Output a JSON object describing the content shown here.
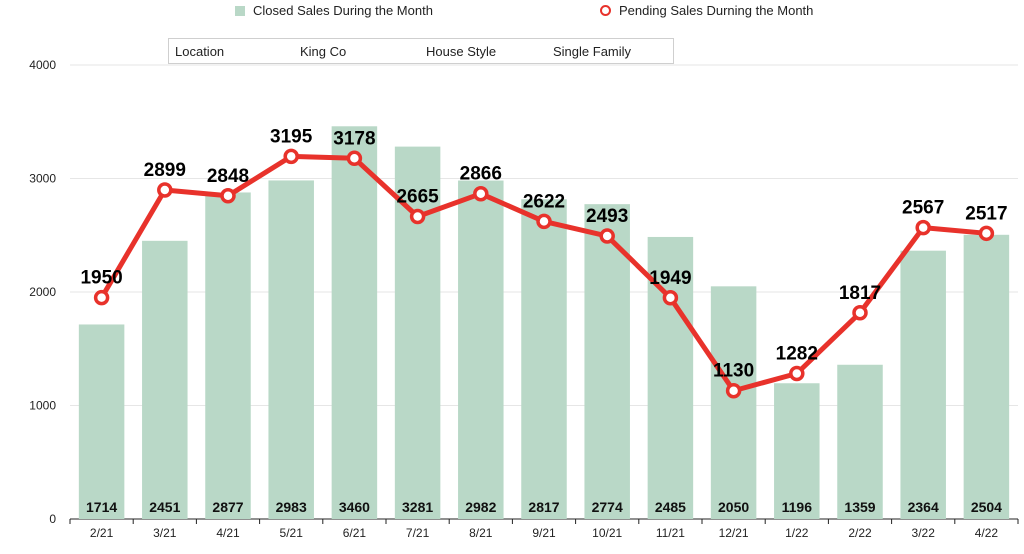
{
  "legend": {
    "closed_label": "Closed Sales During the Month",
    "pending_label": "Pending Sales Durning the Month"
  },
  "info_box": {
    "location_key": "Location",
    "location_value": "King Co",
    "style_key": "House Style",
    "style_value": "Single Family"
  },
  "colors": {
    "bar": "#b9d8c7",
    "line": "#e8322b",
    "grid": "#e6e6e6"
  },
  "chart_data": {
    "type": "bar",
    "categories": [
      "2/21",
      "3/21",
      "4/21",
      "5/21",
      "6/21",
      "7/21",
      "8/21",
      "9/21",
      "10/21",
      "11/21",
      "12/21",
      "1/22",
      "2/22",
      "3/22",
      "4/22"
    ],
    "series": [
      {
        "name": "Closed Sales During the Month",
        "type": "bar",
        "values": [
          1714,
          2451,
          2877,
          2983,
          3460,
          3281,
          2982,
          2817,
          2774,
          2485,
          2050,
          1196,
          1359,
          2364,
          2504
        ]
      },
      {
        "name": "Pending Sales Durning the Month",
        "type": "line",
        "values": [
          1950,
          2899,
          2848,
          3195,
          3178,
          2665,
          2866,
          2622,
          2493,
          1949,
          1130,
          1282,
          1817,
          2567,
          2517
        ]
      }
    ],
    "ylim": [
      0,
      4000
    ],
    "yticks": [
      0,
      1000,
      2000,
      3000,
      4000
    ],
    "grid": true,
    "legend_position": "top"
  }
}
